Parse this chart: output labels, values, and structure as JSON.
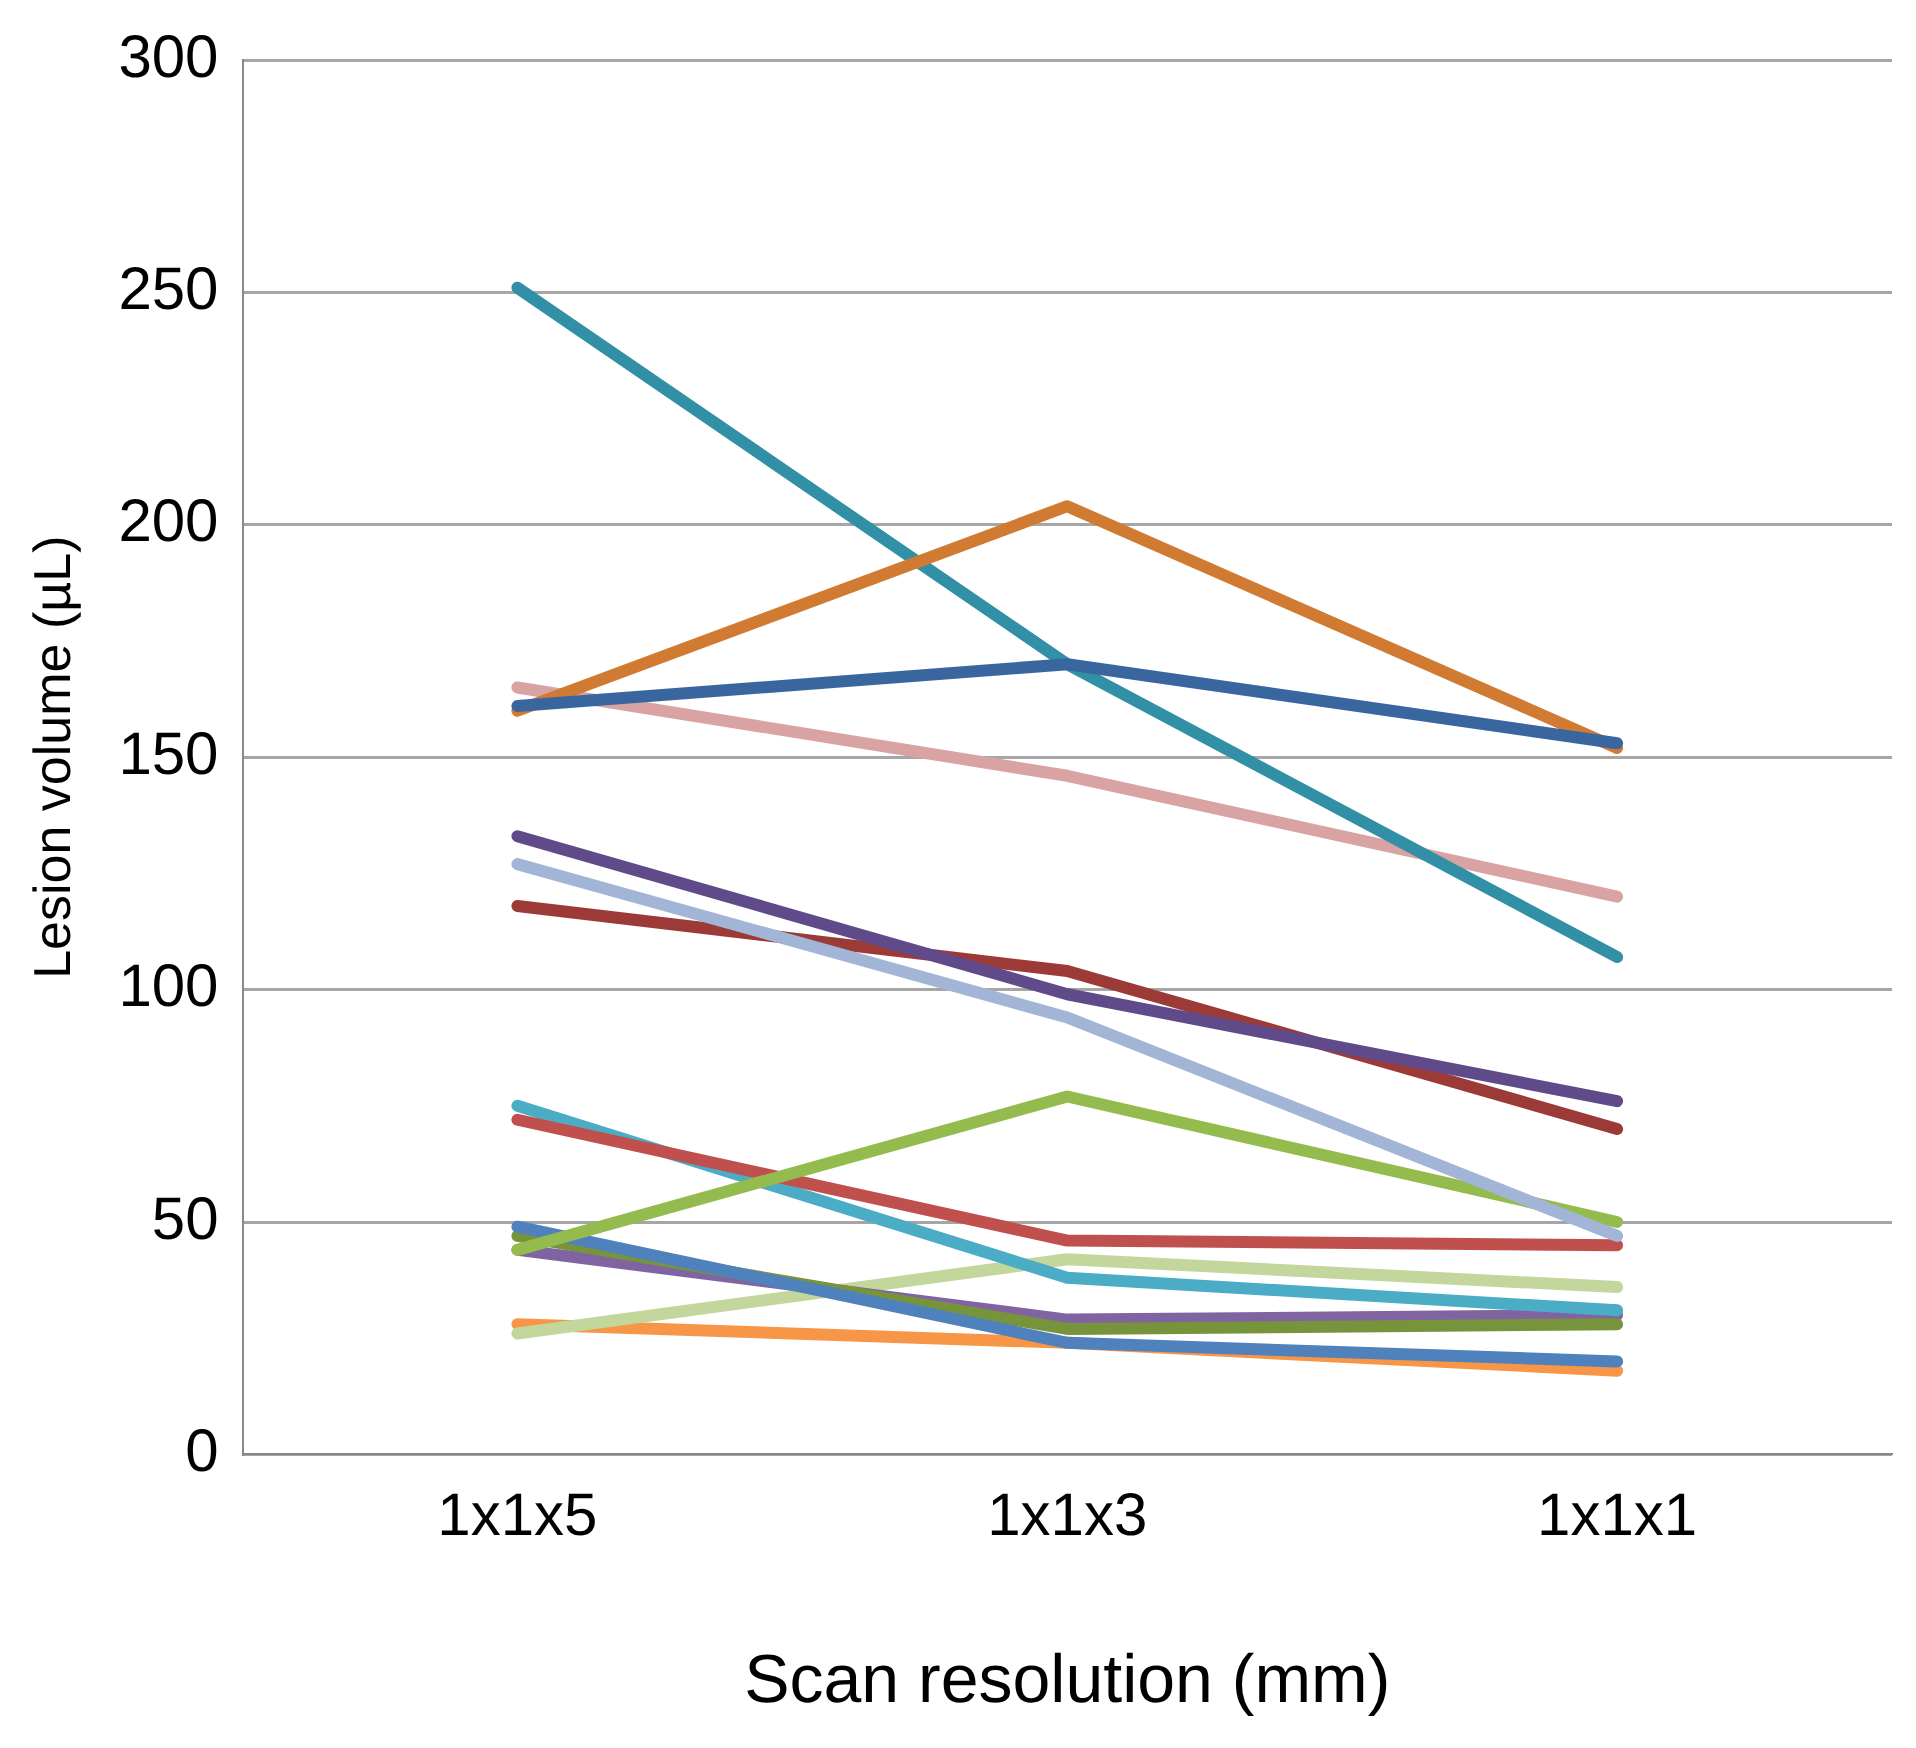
{
  "chart_data": {
    "type": "line",
    "xlabel": "Scan resolution (mm)",
    "ylabel": "Lesion volume (µL)",
    "categories": [
      "1x1x5",
      "1x1x3",
      "1x1x1"
    ],
    "ylim": [
      0,
      300
    ],
    "yticks": [
      0,
      50,
      100,
      150,
      200,
      250,
      300
    ],
    "grid": "y",
    "legend": false,
    "marker": "none",
    "line_style": "solid",
    "series": [
      {
        "color": "#3a66a0",
        "values": [
          161,
          170,
          153
        ]
      },
      {
        "color": "#d07a32",
        "values": [
          160,
          204,
          152
        ]
      },
      {
        "color": "#3190a5",
        "values": [
          251,
          170,
          107
        ]
      },
      {
        "color": "#d9a3a3",
        "values": [
          165,
          146,
          120
        ]
      },
      {
        "color": "#604a8a",
        "values": [
          133,
          99,
          76
        ]
      },
      {
        "color": "#a2b5d6",
        "values": [
          127,
          94,
          47
        ]
      },
      {
        "color": "#9b3a37",
        "values": [
          118,
          104,
          70
        ]
      },
      {
        "color": "#94bb4e",
        "values": [
          44,
          77,
          50
        ]
      },
      {
        "color": "#c0504d",
        "values": [
          72,
          46,
          45
        ]
      },
      {
        "color": "#4bacc6",
        "values": [
          75,
          38,
          31
        ]
      },
      {
        "color": "#4f81bd",
        "values": [
          49,
          24,
          20
        ]
      },
      {
        "color": "#77933c",
        "values": [
          47,
          27,
          28
        ]
      },
      {
        "color": "#8064a2",
        "values": [
          44,
          29,
          30
        ]
      },
      {
        "color": "#c3d69b",
        "values": [
          26,
          42,
          36
        ]
      },
      {
        "color": "#f79646",
        "values": [
          28,
          24,
          18
        ]
      }
    ]
  }
}
